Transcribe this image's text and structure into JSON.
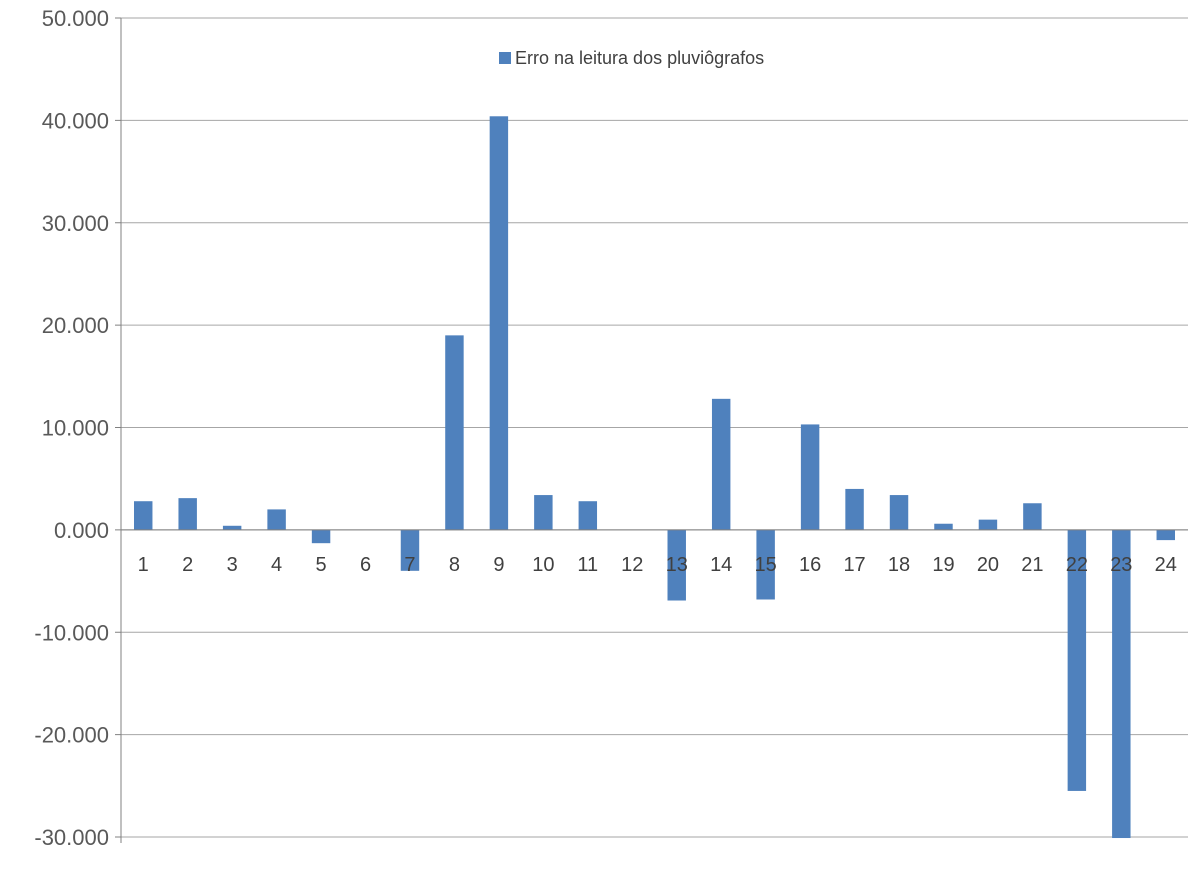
{
  "chart_data": {
    "type": "bar",
    "categories": [
      "1",
      "2",
      "3",
      "4",
      "5",
      "6",
      "7",
      "8",
      "9",
      "10",
      "11",
      "12",
      "13",
      "14",
      "15",
      "16",
      "17",
      "18",
      "19",
      "20",
      "21",
      "22",
      "23",
      "24"
    ],
    "series": [
      {
        "name": "Erro na leitura dos pluviôgrafos",
        "color": "#4F81BD",
        "values": [
          2.8,
          3.1,
          0.4,
          2.0,
          -1.3,
          0.0,
          -4.0,
          19.0,
          40.4,
          3.4,
          2.8,
          0.0,
          -6.9,
          12.8,
          -6.8,
          10.3,
          4.0,
          3.4,
          0.6,
          1.0,
          2.6,
          -25.5,
          -30.1,
          -1.0
        ]
      }
    ],
    "ylim": [
      -30,
      50
    ],
    "y_ticks": [
      50,
      40,
      30,
      20,
      10,
      0,
      -10,
      -20,
      -30
    ],
    "y_tick_labels": [
      "50.000",
      "40.000",
      "30.000",
      "20.000",
      "10.000",
      "0.000",
      "-10.000",
      "-20.000",
      "-30.000"
    ],
    "grid": true,
    "legend_position": "top-center",
    "gridline_color": "#a6a6a6",
    "axis_color": "#808080"
  }
}
